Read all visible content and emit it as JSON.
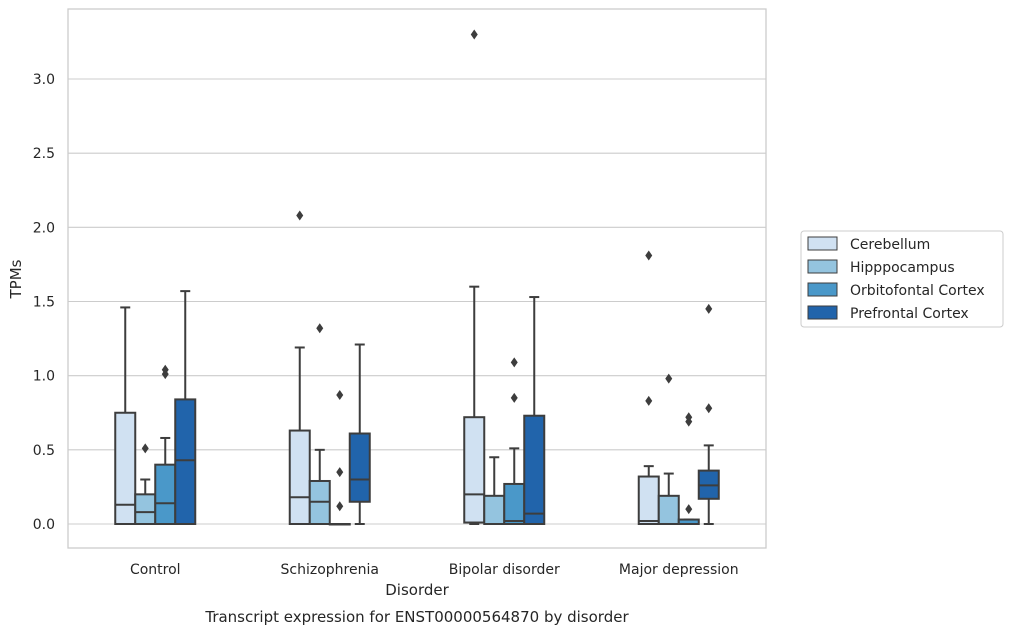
{
  "chart_data": {
    "type": "box",
    "title": "Transcript expression for ENST00000564870 by disorder",
    "xlabel": "Disorder",
    "ylabel": "TPMs",
    "ylim": [
      -0.16,
      3.5
    ],
    "yticks": [
      0.0,
      0.5,
      1.0,
      1.5,
      2.0,
      2.5,
      3.0
    ],
    "ytick_labels": [
      "0.0",
      "0.5",
      "1.0",
      "1.5",
      "2.0",
      "2.5",
      "3.0"
    ],
    "grid": "horizontal",
    "legend_position": "right-center",
    "categories": [
      "Control",
      "Schizophrenia",
      "Bipolar disorder",
      "Major depression"
    ],
    "series": [
      {
        "name": "Cerebellum",
        "color": "#d0e1f2",
        "boxes": [
          {
            "whisker_low": 0.0,
            "q1": 0.0,
            "median": 0.13,
            "q3": 0.75,
            "whisker_high": 1.46,
            "outliers": []
          },
          {
            "whisker_low": 0.0,
            "q1": 0.0,
            "median": 0.18,
            "q3": 0.63,
            "whisker_high": 1.19,
            "outliers": [
              2.08
            ]
          },
          {
            "whisker_low": 0.0,
            "q1": 0.01,
            "median": 0.2,
            "q3": 0.72,
            "whisker_high": 1.6,
            "outliers": [
              3.3
            ]
          },
          {
            "whisker_low": 0.0,
            "q1": 0.0,
            "median": 0.02,
            "q3": 0.32,
            "whisker_high": 0.39,
            "outliers": [
              0.83,
              1.81
            ]
          }
        ]
      },
      {
        "name": "Hipppocampus",
        "color": "#94c4df",
        "boxes": [
          {
            "whisker_low": 0.0,
            "q1": 0.0,
            "median": 0.08,
            "q3": 0.2,
            "whisker_high": 0.3,
            "outliers": [
              0.51
            ]
          },
          {
            "whisker_low": 0.0,
            "q1": 0.0,
            "median": 0.15,
            "q3": 0.29,
            "whisker_high": 0.5,
            "outliers": [
              1.32
            ]
          },
          {
            "whisker_low": 0.0,
            "q1": 0.0,
            "median": 0.0,
            "q3": 0.19,
            "whisker_high": 0.45,
            "outliers": []
          },
          {
            "whisker_low": 0.0,
            "q1": 0.0,
            "median": 0.0,
            "q3": 0.19,
            "whisker_high": 0.34,
            "outliers": [
              0.98
            ]
          }
        ]
      },
      {
        "name": "Orbitofontal Cortex",
        "color": "#4a98c9",
        "boxes": [
          {
            "whisker_low": 0.0,
            "q1": 0.0,
            "median": 0.14,
            "q3": 0.4,
            "whisker_high": 0.58,
            "outliers": [
              1.01,
              1.04
            ]
          },
          {
            "whisker_low": 0.0,
            "q1": 0.0,
            "median": 0.0,
            "q3": 0.0,
            "whisker_high": 0.0,
            "outliers": [
              0.12,
              0.35,
              0.87
            ]
          },
          {
            "whisker_low": 0.0,
            "q1": 0.0,
            "median": 0.02,
            "q3": 0.27,
            "whisker_high": 0.51,
            "outliers": [
              0.85,
              1.09
            ]
          },
          {
            "whisker_low": 0.0,
            "q1": 0.0,
            "median": 0.0,
            "q3": 0.03,
            "whisker_high": 0.03,
            "outliers": [
              0.1,
              0.69,
              0.72
            ]
          }
        ]
      },
      {
        "name": "Prefrontal Cortex",
        "color": "#2164ab",
        "boxes": [
          {
            "whisker_low": 0.0,
            "q1": 0.0,
            "median": 0.43,
            "q3": 0.84,
            "whisker_high": 1.57,
            "outliers": []
          },
          {
            "whisker_low": 0.0,
            "q1": 0.15,
            "median": 0.3,
            "q3": 0.61,
            "whisker_high": 1.21,
            "outliers": []
          },
          {
            "whisker_low": 0.0,
            "q1": 0.0,
            "median": 0.07,
            "q3": 0.73,
            "whisker_high": 1.53,
            "outliers": []
          },
          {
            "whisker_low": 0.0,
            "q1": 0.17,
            "median": 0.26,
            "q3": 0.36,
            "whisker_high": 0.53,
            "outliers": [
              0.78,
              1.45
            ]
          }
        ]
      }
    ]
  }
}
